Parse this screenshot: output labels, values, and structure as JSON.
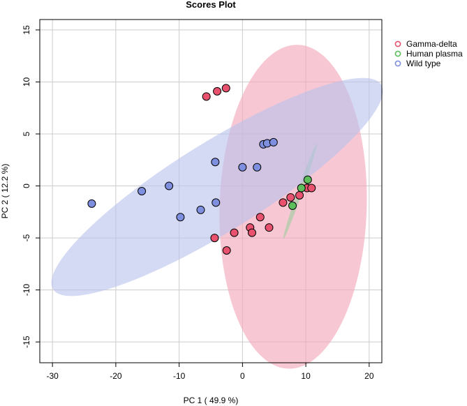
{
  "chart_data": {
    "type": "scatter",
    "title": "Scores Plot",
    "xlabel": "PC 1 ( 49.9 %)",
    "ylabel": "PC 2 ( 12.2 %)",
    "xlim": [
      -32,
      22
    ],
    "ylim": [
      -17,
      16
    ],
    "xticks": [
      "-30",
      "-20",
      "-10",
      "0",
      "10",
      "20"
    ],
    "yticks": [
      "-15",
      "-10",
      "-5",
      "0",
      "5",
      "10",
      "15"
    ],
    "grid": true,
    "legend_position": "right",
    "series": [
      {
        "name": "Gamma-delta",
        "color": "#e8526e",
        "ellipse_color": "#f2a7b8",
        "ellipse": {
          "center": [
            8.0,
            -2.0
          ],
          "semi_axes": [
            15.6,
            11.6
          ],
          "angle_deg": 85
        },
        "points": [
          [
            -5.7,
            8.6
          ],
          [
            -4.0,
            9.1
          ],
          [
            -2.6,
            9.4
          ],
          [
            6.4,
            -1.6
          ],
          [
            7.6,
            -1.1
          ],
          [
            9.0,
            -0.9
          ],
          [
            10.2,
            -0.2
          ],
          [
            10.9,
            -0.2
          ],
          [
            2.8,
            -3.0
          ],
          [
            1.2,
            -4.0
          ],
          [
            1.5,
            -4.5
          ],
          [
            4.2,
            -4.0
          ],
          [
            -1.3,
            -4.5
          ],
          [
            -4.4,
            -5.0
          ],
          [
            -2.5,
            -6.2
          ]
        ]
      },
      {
        "name": "Human plasma",
        "color": "#5cbf5c",
        "ellipse_color": "#9fcc9f",
        "ellipse": {
          "center": [
            9.1,
            -0.5
          ],
          "semi_axes": [
            5.3,
            0.35
          ],
          "angle_deg": 60
        },
        "points": [
          [
            9.3,
            -0.2
          ],
          [
            10.3,
            0.6
          ],
          [
            7.9,
            -1.9
          ]
        ]
      },
      {
        "name": "Wild type",
        "color": "#7f8fdf",
        "ellipse_color": "#b9c1ee",
        "ellipse": {
          "center": [
            -4.0,
            -0.1
          ],
          "semi_axes": [
            27.8,
            4.7
          ],
          "angle_deg": 20
        },
        "points": [
          [
            -23.8,
            -1.7
          ],
          [
            -15.9,
            -0.5
          ],
          [
            -11.6,
            0.0
          ],
          [
            -9.8,
            -3.0
          ],
          [
            -6.6,
            -2.3
          ],
          [
            -4.2,
            -1.6
          ],
          [
            -4.3,
            2.3
          ],
          [
            0.0,
            1.8
          ],
          [
            2.3,
            1.8
          ],
          [
            3.3,
            4.0
          ],
          [
            3.9,
            4.1
          ],
          [
            4.9,
            4.2
          ]
        ]
      }
    ]
  }
}
